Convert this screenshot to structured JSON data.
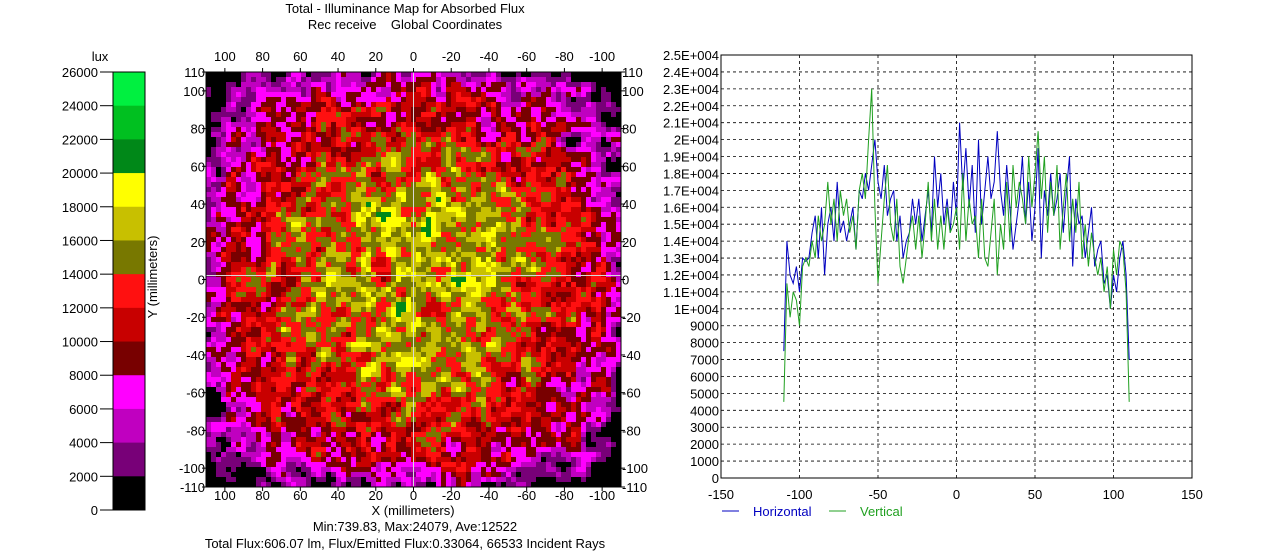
{
  "map": {
    "title": "Total - Illuminance Map for Absorbed Flux",
    "subtitle": "Rec receive    Global Coordinates",
    "colorbar_unit": "lux",
    "colorbar_ticks": [
      "26000",
      "24000",
      "22000",
      "20000",
      "18000",
      "16000",
      "14000",
      "12000",
      "10000",
      "8000",
      "6000",
      "4000",
      "2000",
      "0"
    ],
    "colorbar_colors": [
      "#00f040",
      "#00c020",
      "#008818",
      "#ffff00",
      "#c8c000",
      "#787800",
      "#ff1010",
      "#c80000",
      "#780000",
      "#ff00ff",
      "#c000c0",
      "#780078",
      "#000000"
    ],
    "x_ticks": [
      "100",
      "80",
      "60",
      "40",
      "20",
      "0",
      "-20",
      "-40",
      "-60",
      "-80",
      "-100"
    ],
    "y_ticks_left": [
      "110",
      "100",
      "80",
      "60",
      "40",
      "20",
      "0",
      "-20",
      "-40",
      "-60",
      "-80",
      "-100",
      "-110"
    ],
    "y_ticks_right": [
      "110",
      "100",
      "80",
      "60",
      "40",
      "20",
      "0",
      "-20",
      "-40",
      "-60",
      "-80",
      "-100",
      "-110"
    ],
    "xlabel": "X (millimeters)",
    "ylabel": "Y (millimeters)",
    "stats_line1": "Min:739.83, Max:24079, Ave:12522",
    "stats_line2": "Total Flux:606.07 lm, Flux/Emitted Flux:0.33064, 66533 Incident Rays"
  },
  "chart_data": {
    "type": "line",
    "title": "",
    "xlabel": "",
    "ylabel": "",
    "xlim": [
      -150,
      150
    ],
    "ylim": [
      0,
      25000
    ],
    "x_ticks": [
      "-150",
      "-100",
      "-50",
      "0",
      "50",
      "100",
      "150"
    ],
    "y_ticks": [
      "0",
      "1000",
      "2000",
      "3000",
      "4000",
      "5000",
      "6000",
      "7000",
      "8000",
      "9000",
      "1E+004",
      "1.1E+004",
      "1.2E+004",
      "1.3E+004",
      "1.4E+004",
      "1.5E+004",
      "1.6E+004",
      "1.7E+004",
      "1.8E+004",
      "1.9E+004",
      "2E+004",
      "2.1E+004",
      "2.2E+004",
      "2.3E+004",
      "2.4E+004",
      "2.5E+004"
    ],
    "grid": true,
    "legend_position": "bottom-left",
    "series": [
      {
        "name": "Horizontal",
        "color": "#0000c0",
        "x": [
          -110,
          -108,
          -106,
          -104,
          -102,
          -100,
          -98,
          -96,
          -94,
          -92,
          -90,
          -88,
          -86,
          -84,
          -82,
          -80,
          -78,
          -76,
          -74,
          -72,
          -70,
          -68,
          -66,
          -64,
          -62,
          -60,
          -58,
          -56,
          -54,
          -52,
          -50,
          -48,
          -46,
          -44,
          -42,
          -40,
          -38,
          -36,
          -34,
          -32,
          -30,
          -28,
          -26,
          -24,
          -22,
          -20,
          -18,
          -16,
          -14,
          -12,
          -10,
          -8,
          -6,
          -4,
          -2,
          0,
          2,
          4,
          6,
          8,
          10,
          12,
          14,
          16,
          18,
          20,
          22,
          24,
          26,
          28,
          30,
          32,
          34,
          36,
          38,
          40,
          42,
          44,
          46,
          48,
          50,
          52,
          54,
          56,
          58,
          60,
          62,
          64,
          66,
          68,
          70,
          72,
          74,
          76,
          78,
          80,
          82,
          84,
          86,
          88,
          90,
          92,
          94,
          96,
          98,
          100,
          102,
          104,
          106,
          108,
          110
        ],
        "y": [
          7500,
          14000,
          12000,
          11500,
          12500,
          11000,
          13000,
          12800,
          13000,
          14500,
          15500,
          13000,
          16000,
          12000,
          15000,
          16000,
          14000,
          17500,
          14500,
          15200,
          14000,
          15000,
          16000,
          13500,
          17000,
          16500,
          18000,
          17000,
          18500,
          20000,
          17500,
          16500,
          18500,
          15500,
          16500,
          17000,
          14000,
          15500,
          13000,
          14000,
          14500,
          16500,
          15000,
          16500,
          14000,
          15500,
          17000,
          14500,
          19000,
          16000,
          18000,
          15000,
          16500,
          14500,
          17500,
          15500,
          21000,
          17000,
          19500,
          16000,
          18500,
          14500,
          20000,
          15000,
          17000,
          19000,
          16500,
          17500,
          20500,
          17000,
          15500,
          18500,
          16000,
          13500,
          15000,
          16500,
          19000,
          15000,
          17500,
          14000,
          16000,
          19500,
          13000,
          17000,
          15500,
          18000,
          15500,
          16500,
          18000,
          14500,
          17000,
          19000,
          12500,
          16500,
          15000,
          15500,
          13000,
          14500,
          16000,
          12500,
          13500,
          14000,
          11500,
          12000,
          10000,
          12000,
          11000,
          13000,
          14000,
          12000,
          7000
        ]
      },
      {
        "name": "Vertical",
        "color": "#20a020",
        "x": [
          -110,
          -108,
          -106,
          -104,
          -102,
          -100,
          -98,
          -96,
          -94,
          -92,
          -90,
          -88,
          -86,
          -84,
          -82,
          -80,
          -78,
          -76,
          -74,
          -72,
          -70,
          -68,
          -66,
          -64,
          -62,
          -60,
          -58,
          -56,
          -54,
          -52,
          -50,
          -48,
          -46,
          -44,
          -42,
          -40,
          -38,
          -36,
          -34,
          -32,
          -30,
          -28,
          -26,
          -24,
          -22,
          -20,
          -18,
          -16,
          -14,
          -12,
          -10,
          -8,
          -6,
          -4,
          -2,
          0,
          2,
          4,
          6,
          8,
          10,
          12,
          14,
          16,
          18,
          20,
          22,
          24,
          26,
          28,
          30,
          32,
          34,
          36,
          38,
          40,
          42,
          44,
          46,
          48,
          50,
          52,
          54,
          56,
          58,
          60,
          62,
          64,
          66,
          68,
          70,
          72,
          74,
          76,
          78,
          80,
          82,
          84,
          86,
          88,
          90,
          92,
          94,
          96,
          98,
          100,
          102,
          104,
          106,
          108,
          110
        ],
        "y": [
          4500,
          11500,
          9500,
          11000,
          10500,
          9000,
          12500,
          13000,
          12500,
          14000,
          13000,
          15500,
          14000,
          15000,
          17500,
          15000,
          16500,
          14000,
          17000,
          15500,
          16500,
          14500,
          15500,
          13500,
          17000,
          18000,
          16500,
          20000,
          23000,
          16000,
          11500,
          14000,
          16500,
          18500,
          15000,
          14000,
          16500,
          12500,
          11500,
          13000,
          14500,
          15500,
          13500,
          15500,
          13000,
          15000,
          17500,
          14000,
          16500,
          13500,
          15500,
          13500,
          16000,
          14500,
          15000,
          16000,
          13500,
          18000,
          14000,
          16500,
          15000,
          15500,
          13000,
          16500,
          13000,
          12500,
          14500,
          16500,
          12000,
          15000,
          13500,
          17500,
          14000,
          18500,
          16000,
          17500,
          16500,
          15000,
          19000,
          16000,
          18000,
          20500,
          16500,
          19000,
          14500,
          17500,
          15500,
          18500,
          13500,
          16000,
          18000,
          14000,
          16500,
          14500,
          17500,
          13000,
          15000,
          12500,
          14500,
          13000,
          12000,
          13000,
          11000,
          12500,
          10000,
          13500,
          12000,
          14000,
          13500,
          11000,
          4500
        ]
      }
    ]
  }
}
